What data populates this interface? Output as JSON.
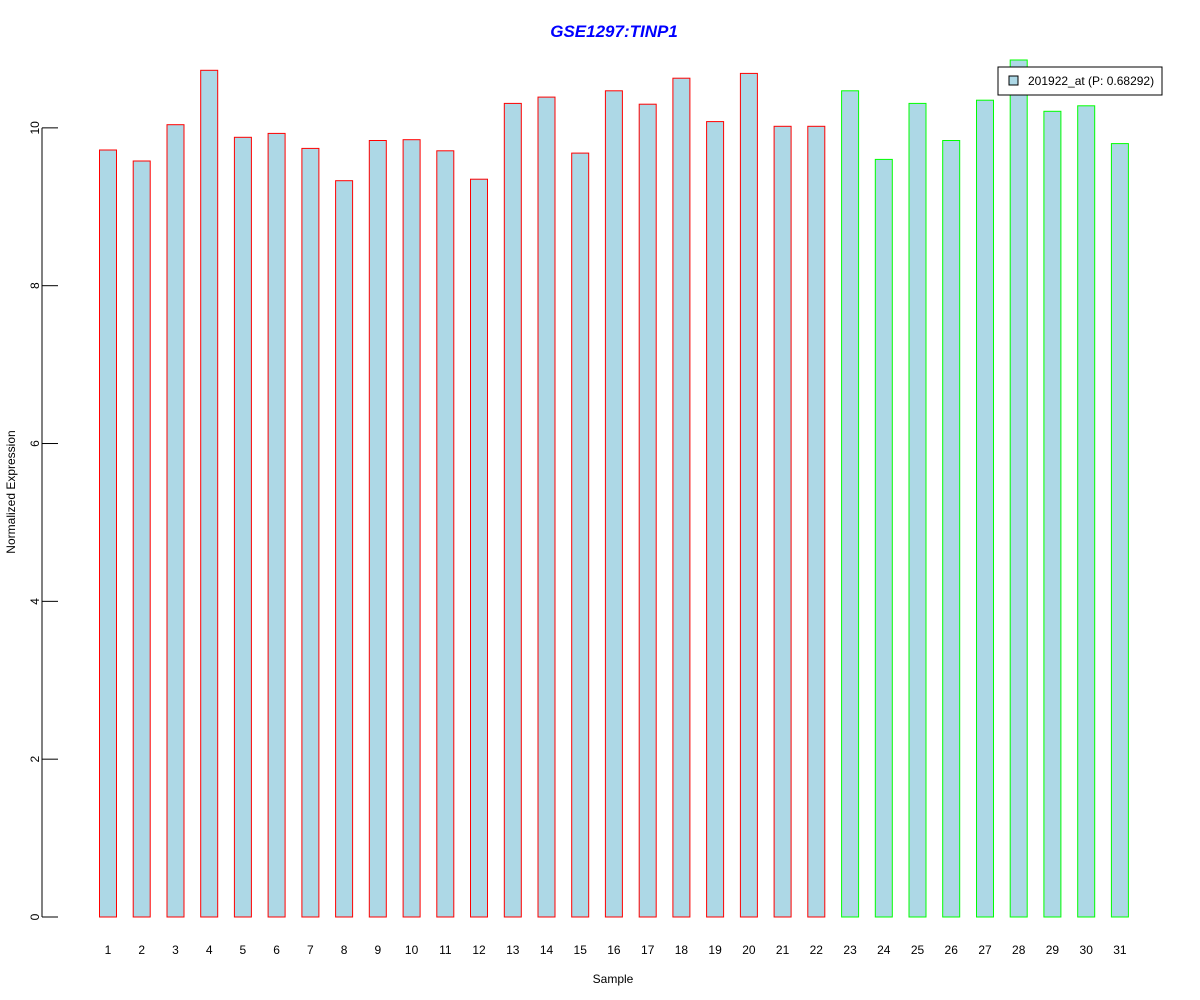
{
  "chart_data": {
    "type": "bar",
    "title": "GSE1297:TINP1",
    "xlabel": "Sample",
    "ylabel": "Normalized Expression",
    "categories": [
      "1",
      "2",
      "3",
      "4",
      "5",
      "6",
      "7",
      "8",
      "9",
      "10",
      "11",
      "12",
      "13",
      "14",
      "15",
      "16",
      "17",
      "18",
      "19",
      "20",
      "21",
      "22",
      "23",
      "24",
      "25",
      "26",
      "27",
      "28",
      "29",
      "30",
      "31"
    ],
    "series": [
      {
        "name": "201922_at (P: 0.68292)",
        "values": [
          9.72,
          9.58,
          10.04,
          10.73,
          9.88,
          9.93,
          9.74,
          9.33,
          9.84,
          9.85,
          9.71,
          9.35,
          10.31,
          10.39,
          9.68,
          10.47,
          10.3,
          10.63,
          10.08,
          10.69,
          10.02,
          10.02,
          10.47,
          9.6,
          10.31,
          9.84,
          10.35,
          10.86,
          10.21,
          10.28,
          9.8
        ]
      }
    ],
    "bar_fill": "#add8e6",
    "group_borders": [
      "#ff0000",
      "#ff0000",
      "#ff0000",
      "#ff0000",
      "#ff0000",
      "#ff0000",
      "#ff0000",
      "#ff0000",
      "#ff0000",
      "#ff0000",
      "#ff0000",
      "#ff0000",
      "#ff0000",
      "#ff0000",
      "#ff0000",
      "#ff0000",
      "#ff0000",
      "#ff0000",
      "#ff0000",
      "#ff0000",
      "#ff0000",
      "#ff0000",
      "#00ff00",
      "#00ff00",
      "#00ff00",
      "#00ff00",
      "#00ff00",
      "#00ff00",
      "#00ff00",
      "#00ff00",
      "#00ff00"
    ],
    "title_color": "#0000ff",
    "yticks": [
      0,
      2,
      4,
      6,
      8,
      10
    ],
    "ylim": [
      0,
      10.86
    ],
    "grid": false,
    "legend_position": "top-right"
  }
}
